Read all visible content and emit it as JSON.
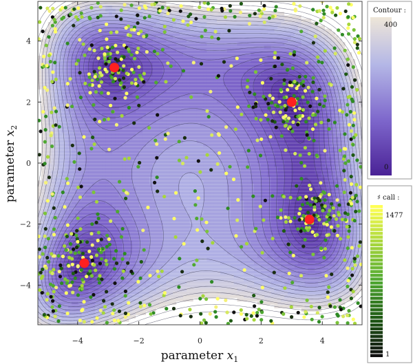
{
  "chart_data": {
    "type": "contour-scatter",
    "xlabel": "parameter",
    "xlabel_var": "x",
    "xlabel_sub": "1",
    "ylabel": "parameter",
    "ylabel_var": "x",
    "ylabel_sub": "2",
    "xlim": [
      -5.3,
      5.3
    ],
    "ylim": [
      -5.3,
      5.3
    ],
    "xticks": [
      -4,
      -2,
      0,
      2,
      4
    ],
    "yticks": [
      -4,
      -2,
      0,
      2,
      4
    ],
    "contour_legend": {
      "title": "Contour :",
      "max": "400",
      "min": "0",
      "colors": [
        "#4a2296",
        "#7e67cc",
        "#b4b7e6",
        "#eee6d8"
      ]
    },
    "call_legend": {
      "title": "♯ call :",
      "max": "1477",
      "min": "1",
      "colors": [
        "#111111",
        "#1f5a14",
        "#4fa832",
        "#a6d63c",
        "#ffff55"
      ]
    },
    "minima": [
      {
        "x": -2.8,
        "y": 3.13
      },
      {
        "x": 3.0,
        "y": 2.0
      },
      {
        "x": 3.58,
        "y": -1.85
      },
      {
        "x": -3.78,
        "y": -3.28
      }
    ],
    "minima_color": "#ff2020",
    "surface": "Himmelblau"
  }
}
